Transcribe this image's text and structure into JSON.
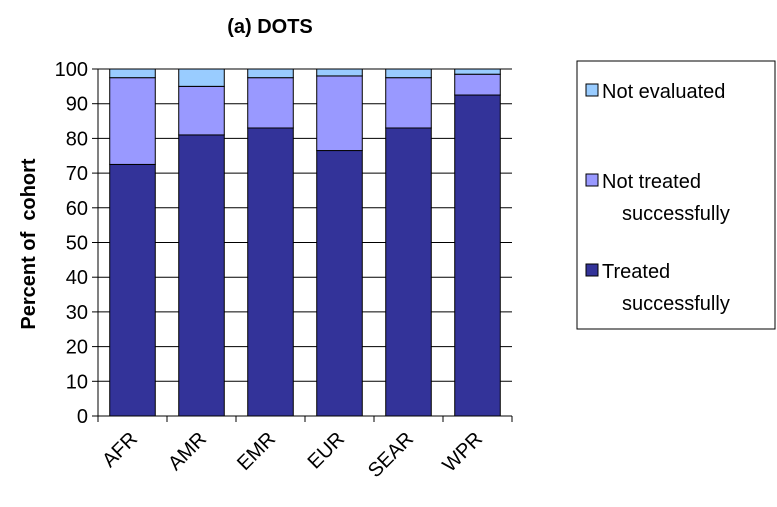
{
  "chart_data": {
    "type": "bar",
    "stacked": true,
    "title": "(a) DOTS",
    "xlabel": "",
    "ylabel": "Percent of  cohort",
    "ylim": [
      0,
      100
    ],
    "yticks": [
      0,
      10,
      20,
      30,
      40,
      50,
      60,
      70,
      80,
      90,
      100
    ],
    "categories": [
      "AFR",
      "AMR",
      "EMR",
      "EUR",
      "SEAR",
      "WPR"
    ],
    "series": [
      {
        "name": "Treated successfully",
        "color": "#333399",
        "values": [
          72.5,
          81,
          83,
          76.5,
          83,
          92.5
        ]
      },
      {
        "name": "Not treated successfully",
        "color": "#9999ff",
        "values": [
          25,
          14,
          14.5,
          21.5,
          14.5,
          6
        ]
      },
      {
        "name": "Not evaluated",
        "color": "#99ccff",
        "values": [
          2.5,
          5,
          2.5,
          2,
          2.5,
          1.5
        ]
      }
    ],
    "legend": {
      "position": "right",
      "entries": [
        {
          "lines": [
            "Not evaluated"
          ],
          "color": "#99ccff"
        },
        {
          "lines": [
            "Not treated",
            "successfully"
          ],
          "color": "#9999ff"
        },
        {
          "lines": [
            "Treated",
            "successfully"
          ],
          "color": "#333399"
        }
      ]
    },
    "grid": true
  }
}
